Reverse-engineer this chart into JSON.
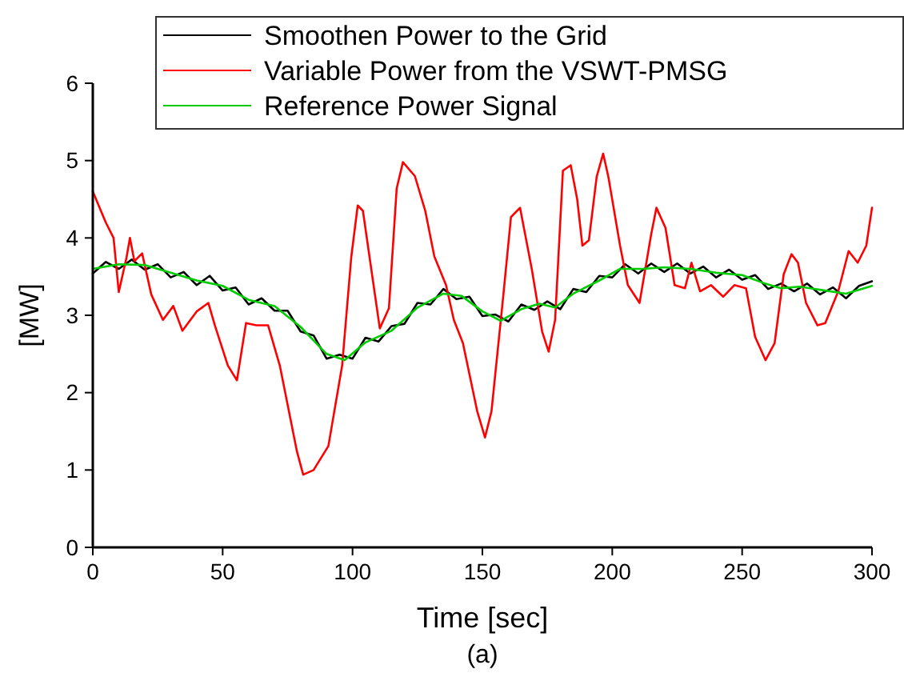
{
  "chart_data": {
    "type": "line",
    "xlabel": "Time [sec]",
    "ylabel": "[MW]",
    "annotations": [
      "(a)"
    ],
    "xlim": [
      0,
      300
    ],
    "xticks": [
      0,
      50,
      100,
      150,
      200,
      250,
      300
    ],
    "ylim": [
      0,
      6
    ],
    "yticks": [
      0,
      1,
      2,
      3,
      4,
      5,
      6
    ],
    "grid": false,
    "legend": "top right",
    "marker": "none",
    "line_style": "solid",
    "series": [
      {
        "name": "Smoothen Power to the Grid",
        "color": "#000000",
        "x": [
          0,
          5,
          10,
          15,
          20,
          25,
          30,
          35,
          40,
          45,
          50,
          55,
          60,
          65,
          70,
          75,
          80,
          85,
          90,
          95,
          100,
          105,
          110,
          115,
          120,
          125,
          130,
          135,
          140,
          145,
          150,
          155,
          160,
          165,
          170,
          175,
          180,
          185,
          190,
          195,
          200,
          205,
          210,
          215,
          220,
          225,
          230,
          235,
          240,
          245,
          250,
          255,
          260,
          265,
          270,
          275,
          280,
          285,
          290,
          295,
          300
        ],
        "values": [
          3.54,
          3.69,
          3.6,
          3.72,
          3.59,
          3.66,
          3.49,
          3.56,
          3.39,
          3.51,
          3.32,
          3.36,
          3.14,
          3.22,
          3.06,
          3.06,
          2.79,
          2.74,
          2.44,
          2.49,
          2.44,
          2.71,
          2.66,
          2.86,
          2.89,
          3.16,
          3.14,
          3.34,
          3.21,
          3.24,
          2.99,
          3.01,
          2.92,
          3.14,
          3.07,
          3.18,
          3.08,
          3.34,
          3.3,
          3.51,
          3.49,
          3.66,
          3.54,
          3.67,
          3.56,
          3.67,
          3.54,
          3.63,
          3.49,
          3.59,
          3.46,
          3.52,
          3.34,
          3.41,
          3.31,
          3.41,
          3.27,
          3.36,
          3.22,
          3.38,
          3.44
        ]
      },
      {
        "name": "Variable Power from the VSWT-PMSG",
        "color": "#ff0000",
        "x": [
          0,
          5,
          8,
          10,
          13,
          14.3,
          16,
          19,
          22.5,
          27,
          31,
          34.5,
          40,
          44.5,
          47,
          52,
          55.5,
          59,
          63,
          67.5,
          72,
          78.6,
          81,
          85,
          90.7,
          96,
          99.5,
          102,
          104,
          107.5,
          110.5,
          114,
          117,
          119.4,
          124,
          128,
          131.5,
          136,
          139,
          142.5,
          148,
          151,
          153.5,
          158,
          161,
          164.5,
          169,
          173,
          175.5,
          178,
          181,
          184,
          186.5,
          188.5,
          191,
          194,
          196.5,
          198.5,
          203,
          206,
          210.5,
          215,
          217,
          220.5,
          224,
          228,
          230.5,
          233.8,
          238,
          242.7,
          247,
          251.5,
          255,
          259,
          262.5,
          266,
          269,
          271.5,
          274.6,
          279,
          282,
          287,
          291,
          294.5,
          297.8,
          300
        ],
        "values": [
          4.6,
          4.2,
          4.0,
          3.3,
          3.75,
          4.0,
          3.7,
          3.8,
          3.27,
          2.94,
          3.12,
          2.8,
          3.05,
          3.16,
          2.87,
          2.35,
          2.16,
          2.9,
          2.87,
          2.87,
          2.35,
          1.24,
          0.94,
          1.0,
          1.31,
          2.35,
          3.75,
          4.42,
          4.35,
          3.53,
          2.83,
          3.09,
          4.64,
          4.98,
          4.8,
          4.35,
          3.76,
          3.39,
          2.94,
          2.64,
          1.76,
          1.42,
          1.76,
          3.24,
          4.27,
          4.39,
          3.6,
          2.79,
          2.53,
          2.94,
          4.87,
          4.94,
          4.5,
          3.9,
          3.97,
          4.79,
          5.09,
          4.79,
          3.9,
          3.39,
          3.16,
          4.05,
          4.39,
          4.13,
          3.39,
          3.35,
          3.68,
          3.31,
          3.39,
          3.24,
          3.39,
          3.35,
          2.72,
          2.42,
          2.64,
          3.53,
          3.79,
          3.68,
          3.16,
          2.87,
          2.9,
          3.31,
          3.83,
          3.68,
          3.9,
          4.39
        ]
      },
      {
        "name": "Reference Power Signal",
        "color": "#00cc00",
        "x": [
          0,
          10,
          20,
          30,
          40,
          50,
          60,
          70,
          80,
          90,
          97,
          105,
          115,
          125,
          135,
          142,
          150,
          157,
          165,
          172,
          178,
          185,
          195,
          203,
          212,
          220,
          230,
          240,
          250,
          258,
          265,
          272,
          280,
          290,
          300
        ],
        "values": [
          3.6,
          3.66,
          3.65,
          3.55,
          3.45,
          3.38,
          3.2,
          3.12,
          2.85,
          2.5,
          2.42,
          2.65,
          2.8,
          3.1,
          3.28,
          3.25,
          3.05,
          2.93,
          3.08,
          3.15,
          3.1,
          3.28,
          3.45,
          3.6,
          3.6,
          3.62,
          3.6,
          3.55,
          3.52,
          3.42,
          3.35,
          3.37,
          3.33,
          3.28,
          3.38
        ]
      }
    ]
  }
}
